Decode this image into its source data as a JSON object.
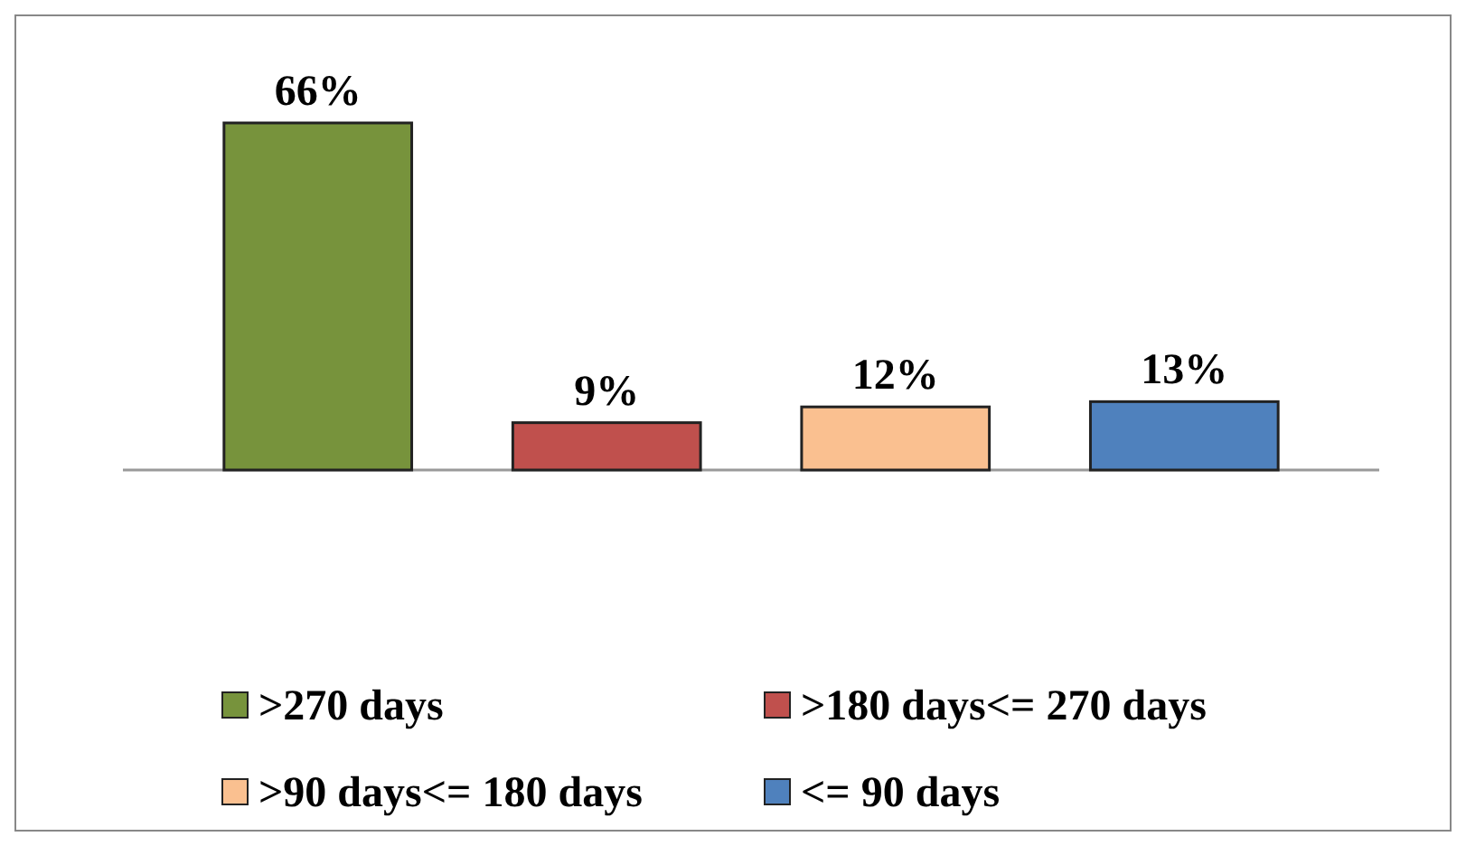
{
  "chart_data": {
    "type": "bar",
    "stacked": true,
    "categories": [
      null,
      null,
      null,
      null
    ],
    "series": [
      {
        "name": ">270 days",
        "color": "#77933c",
        "values": [
          66,
          null,
          null,
          null
        ],
        "value_labels": [
          "66%",
          null,
          null,
          null
        ]
      },
      {
        "name": ">180 days<= 270 days",
        "color": "#c0504d",
        "values": [
          null,
          9,
          null,
          null
        ],
        "value_labels": [
          null,
          "9%",
          null,
          null
        ]
      },
      {
        "name": ">90 days<= 180 days",
        "color": "#fac090",
        "values": [
          null,
          null,
          12,
          null
        ],
        "value_labels": [
          null,
          null,
          "12%",
          null
        ]
      },
      {
        "name": "<= 90 days",
        "color": "#4f81bd",
        "values": [
          null,
          null,
          null,
          13
        ],
        "value_labels": [
          null,
          null,
          null,
          "13%"
        ]
      }
    ],
    "legend": "bottom"
  }
}
